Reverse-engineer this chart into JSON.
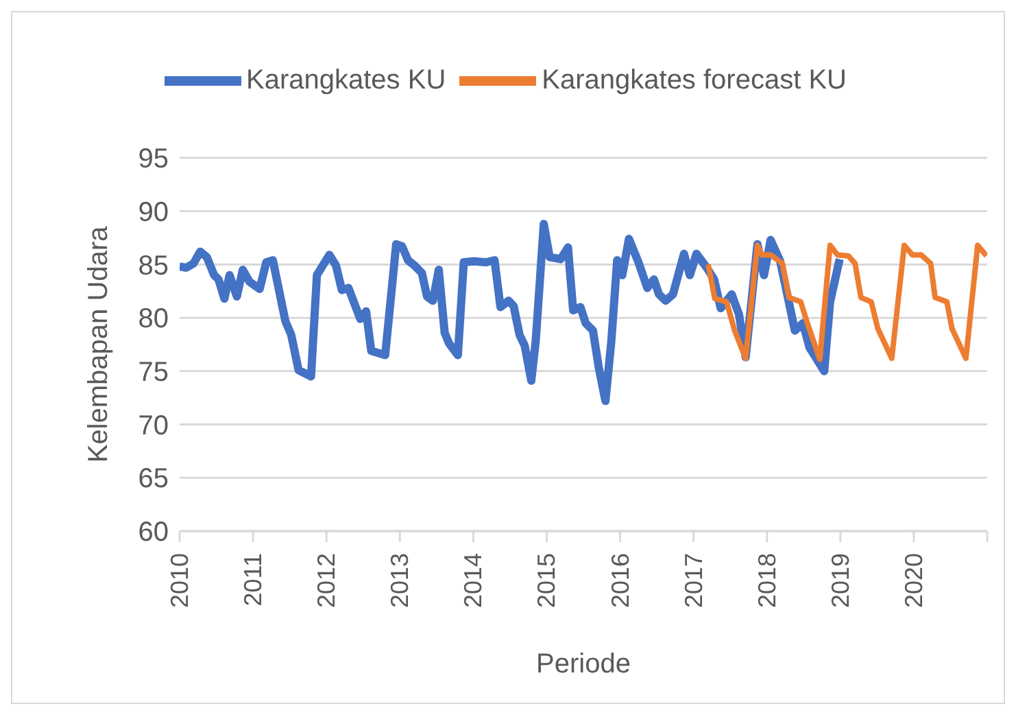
{
  "chart_data": {
    "type": "line",
    "xlabel": "Periode",
    "ylabel": "Kelembapan Udara",
    "legend": "top",
    "grid": "y",
    "xlim": [
      2010,
      2021
    ],
    "xticks": [
      2010,
      2011,
      2012,
      2013,
      2014,
      2015,
      2016,
      2017,
      2018,
      2019,
      2020,
      {
        "value": 2021,
        "label": null
      }
    ],
    "ylim": [
      60,
      95
    ],
    "yticks": [
      60,
      65,
      70,
      75,
      80,
      85,
      90,
      95
    ],
    "series": [
      {
        "name": "Karangkates KU",
        "color": "#4472c4",
        "x": [
          2010.0,
          2010.09,
          2010.19,
          2010.28,
          2010.37,
          2010.47,
          2010.53,
          2010.61,
          2010.68,
          2010.78,
          2010.86,
          2010.95,
          2011.09,
          2011.18,
          2011.27,
          2011.44,
          2011.52,
          2011.62,
          2011.79,
          2011.87,
          2012.04,
          2012.13,
          2012.21,
          2012.3,
          2012.46,
          2012.54,
          2012.61,
          2012.8,
          2012.95,
          2013.03,
          2013.11,
          2013.2,
          2013.3,
          2013.37,
          2013.45,
          2013.53,
          2013.61,
          2013.67,
          2013.79,
          2013.87,
          2014.01,
          2014.17,
          2014.29,
          2014.37,
          2014.48,
          2014.55,
          2014.63,
          2014.7,
          2014.79,
          2014.85,
          2014.96,
          2015.04,
          2015.19,
          2015.29,
          2015.36,
          2015.46,
          2015.53,
          2015.63,
          2015.71,
          2015.8,
          2015.88,
          2015.96,
          2016.03,
          2016.12,
          2016.25,
          2016.37,
          2016.46,
          2016.53,
          2016.62,
          2016.72,
          2016.87,
          2016.95,
          2017.04,
          2017.18,
          2017.28,
          2017.37,
          2017.52,
          2017.62,
          2017.71,
          2017.87,
          2017.96,
          2018.05,
          2018.18,
          2018.27,
          2018.38,
          2018.49,
          2018.58,
          2018.78,
          2018.86,
          2018.99
        ],
        "values": [
          84.8,
          84.7,
          85.1,
          86.2,
          85.7,
          84,
          83.6,
          81.8,
          84,
          82,
          84.5,
          83.4,
          82.7,
          85.2,
          85.4,
          79.7,
          78.4,
          75.1,
          74.5,
          84,
          85.9,
          84.9,
          82.6,
          82.8,
          79.9,
          80.6,
          76.9,
          76.5,
          86.9,
          86.7,
          85.4,
          84.9,
          84.2,
          82,
          81.6,
          84.5,
          78.6,
          77.6,
          76.5,
          85.2,
          85.3,
          85.2,
          85.4,
          81,
          81.6,
          81.1,
          78.4,
          77.4,
          74.1,
          77.8,
          88.8,
          85.7,
          85.5,
          86.6,
          80.7,
          81,
          79.5,
          78.8,
          75.3,
          72.2,
          77.8,
          85.4,
          84,
          87.4,
          85.2,
          82.8,
          83.6,
          82.2,
          81.6,
          82.2,
          86,
          84,
          86,
          84.7,
          83.6,
          80.9,
          82.2,
          80.3,
          76.3,
          86.9,
          84,
          87.3,
          85.3,
          82.4,
          78.8,
          79.5,
          77.2,
          75,
          81.5,
          85.5
        ]
      },
      {
        "name": "Karangkates forecast KU",
        "color": "#ed7d31",
        "x": [
          2017.2,
          2017.29,
          2017.45,
          2017.56,
          2017.71,
          2017.87,
          2017.93,
          2018.05,
          2018.21,
          2018.3,
          2018.46,
          2018.55,
          2018.72,
          2018.86,
          2018.96,
          2019.11,
          2019.2,
          2019.28,
          2019.42,
          2019.51,
          2019.7,
          2019.87,
          2019.98,
          2020.1,
          2020.23,
          2020.29,
          2020.45,
          2020.52,
          2020.71,
          2020.87,
          2020.99
        ],
        "values": [
          85,
          81.8,
          81.5,
          78.8,
          76.2,
          86.8,
          85.9,
          85.9,
          85.1,
          81.9,
          81.5,
          79.5,
          76.1,
          86.8,
          85.9,
          85.8,
          85.1,
          81.9,
          81.5,
          79,
          76.2,
          86.8,
          85.9,
          85.9,
          85.1,
          81.9,
          81.5,
          79,
          76.2,
          86.8,
          85.8
        ]
      }
    ]
  }
}
